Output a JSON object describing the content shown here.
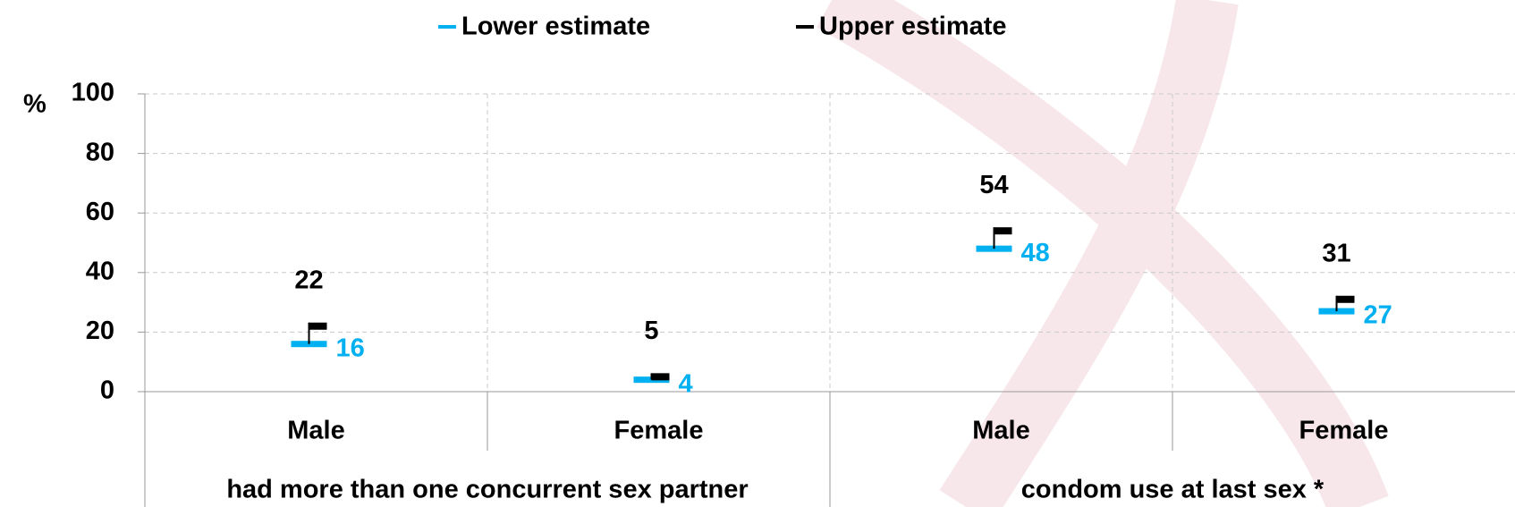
{
  "chart_data": {
    "type": "range-marker",
    "y_label": "%",
    "categories": [
      "Male",
      "Female",
      "Male",
      "Female"
    ],
    "group_labels": [
      "had more than one concurrent sex partner",
      "condom use at last sex *"
    ],
    "series": [
      {
        "name": "Lower estimate",
        "color": "#00b0f0",
        "values": [
          16,
          4,
          48,
          27
        ]
      },
      {
        "name": "Upper estimate",
        "color": "#000000",
        "values": [
          22,
          5,
          54,
          31
        ]
      }
    ],
    "ylim": [
      0,
      100
    ],
    "yticks": [
      0,
      20,
      40,
      60,
      80,
      100
    ],
    "grid": true
  }
}
